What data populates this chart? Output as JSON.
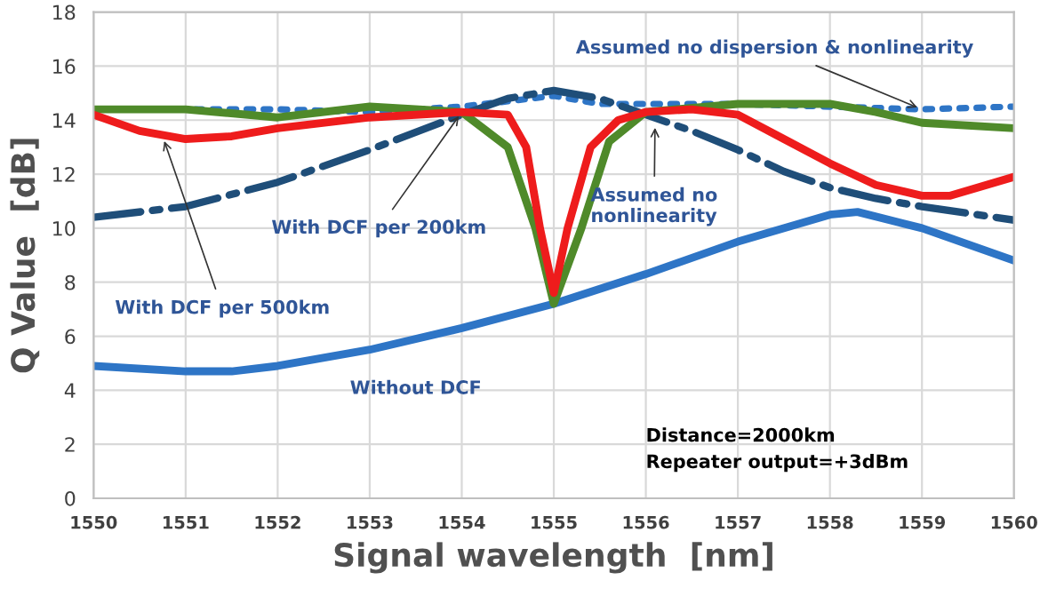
{
  "chart_data": {
    "type": "line",
    "xlabel": "Signal wavelength  [nm]",
    "ylabel": "Q Value  [dB]",
    "xlim": [
      1550,
      1560
    ],
    "xticks": [
      1550,
      1551,
      1552,
      1553,
      1554,
      1555,
      1556,
      1557,
      1558,
      1559,
      1560
    ],
    "ylim": [
      0,
      18
    ],
    "yticks": [
      0,
      2,
      4,
      6,
      8,
      10,
      12,
      14,
      16,
      18
    ],
    "grid": true,
    "legend": false,
    "series": [
      {
        "color": "#2e75c6",
        "line_style": "solid",
        "x": [
          1550,
          1551,
          1551.5,
          1552,
          1553,
          1554,
          1555,
          1556,
          1557,
          1558,
          1558.3,
          1559,
          1560
        ],
        "values": [
          4.9,
          4.7,
          4.7,
          4.9,
          5.5,
          6.3,
          7.2,
          8.3,
          9.5,
          10.5,
          10.6,
          10.0,
          8.8
        ]
      },
      {
        "color": "#2e75c6",
        "line_style": "dotted",
        "x": [
          1550,
          1552,
          1553,
          1554,
          1554.5,
          1555,
          1555.5,
          1556,
          1557,
          1558,
          1559,
          1560
        ],
        "values": [
          14.4,
          14.4,
          14.3,
          14.5,
          14.7,
          14.9,
          14.6,
          14.6,
          14.6,
          14.5,
          14.4,
          14.5
        ]
      },
      {
        "color": "#1f4e79",
        "line_style": "dashdot",
        "x": [
          1550,
          1551,
          1552,
          1553,
          1554,
          1554.5,
          1555,
          1555.5,
          1556,
          1556.5,
          1557,
          1557.5,
          1558,
          1558.5,
          1559,
          1560
        ],
        "values": [
          10.4,
          10.8,
          11.7,
          12.9,
          14.2,
          14.8,
          15.1,
          14.8,
          14.2,
          13.6,
          12.9,
          12.1,
          11.5,
          11.1,
          10.8,
          10.3
        ]
      },
      {
        "color": "#4f8a2a",
        "line_style": "solid",
        "x": [
          1550,
          1551,
          1552,
          1553,
          1554,
          1554.5,
          1554.8,
          1555,
          1555.3,
          1555.6,
          1556,
          1557,
          1558,
          1558.5,
          1559,
          1560
        ],
        "values": [
          14.4,
          14.4,
          14.1,
          14.5,
          14.3,
          13.0,
          10.0,
          7.2,
          10.0,
          13.2,
          14.3,
          14.6,
          14.6,
          14.3,
          13.9,
          13.7
        ]
      },
      {
        "color": "#ee1c1c",
        "line_style": "solid",
        "x": [
          1550,
          1550.5,
          1551,
          1551.5,
          1552,
          1553,
          1554,
          1554.5,
          1554.7,
          1554.85,
          1555,
          1555.15,
          1555.4,
          1555.7,
          1556,
          1556.5,
          1557,
          1557.5,
          1558,
          1558.5,
          1559,
          1559.3,
          1560
        ],
        "values": [
          14.2,
          13.6,
          13.3,
          13.4,
          13.7,
          14.1,
          14.3,
          14.2,
          13.0,
          10.0,
          7.6,
          10.0,
          13.0,
          14.0,
          14.3,
          14.4,
          14.2,
          13.3,
          12.4,
          11.6,
          11.2,
          11.2,
          11.9
        ]
      }
    ],
    "annotations": [
      {
        "text": "Assumed no dispersion & nonlinearity",
        "x": 1559,
        "y": 14.4
      },
      {
        "text": "Assumed no\nnonlinearity",
        "x": 1556.1,
        "y": 13.9
      },
      {
        "text": "With DCF per 200km",
        "x": 1554,
        "y": 14.3
      },
      {
        "text": "With DCF per 500km",
        "x": 1550.75,
        "y": 13.4
      },
      "Without DCF",
      "Distance=2000km\nRepeater output=+3dBm"
    ]
  }
}
